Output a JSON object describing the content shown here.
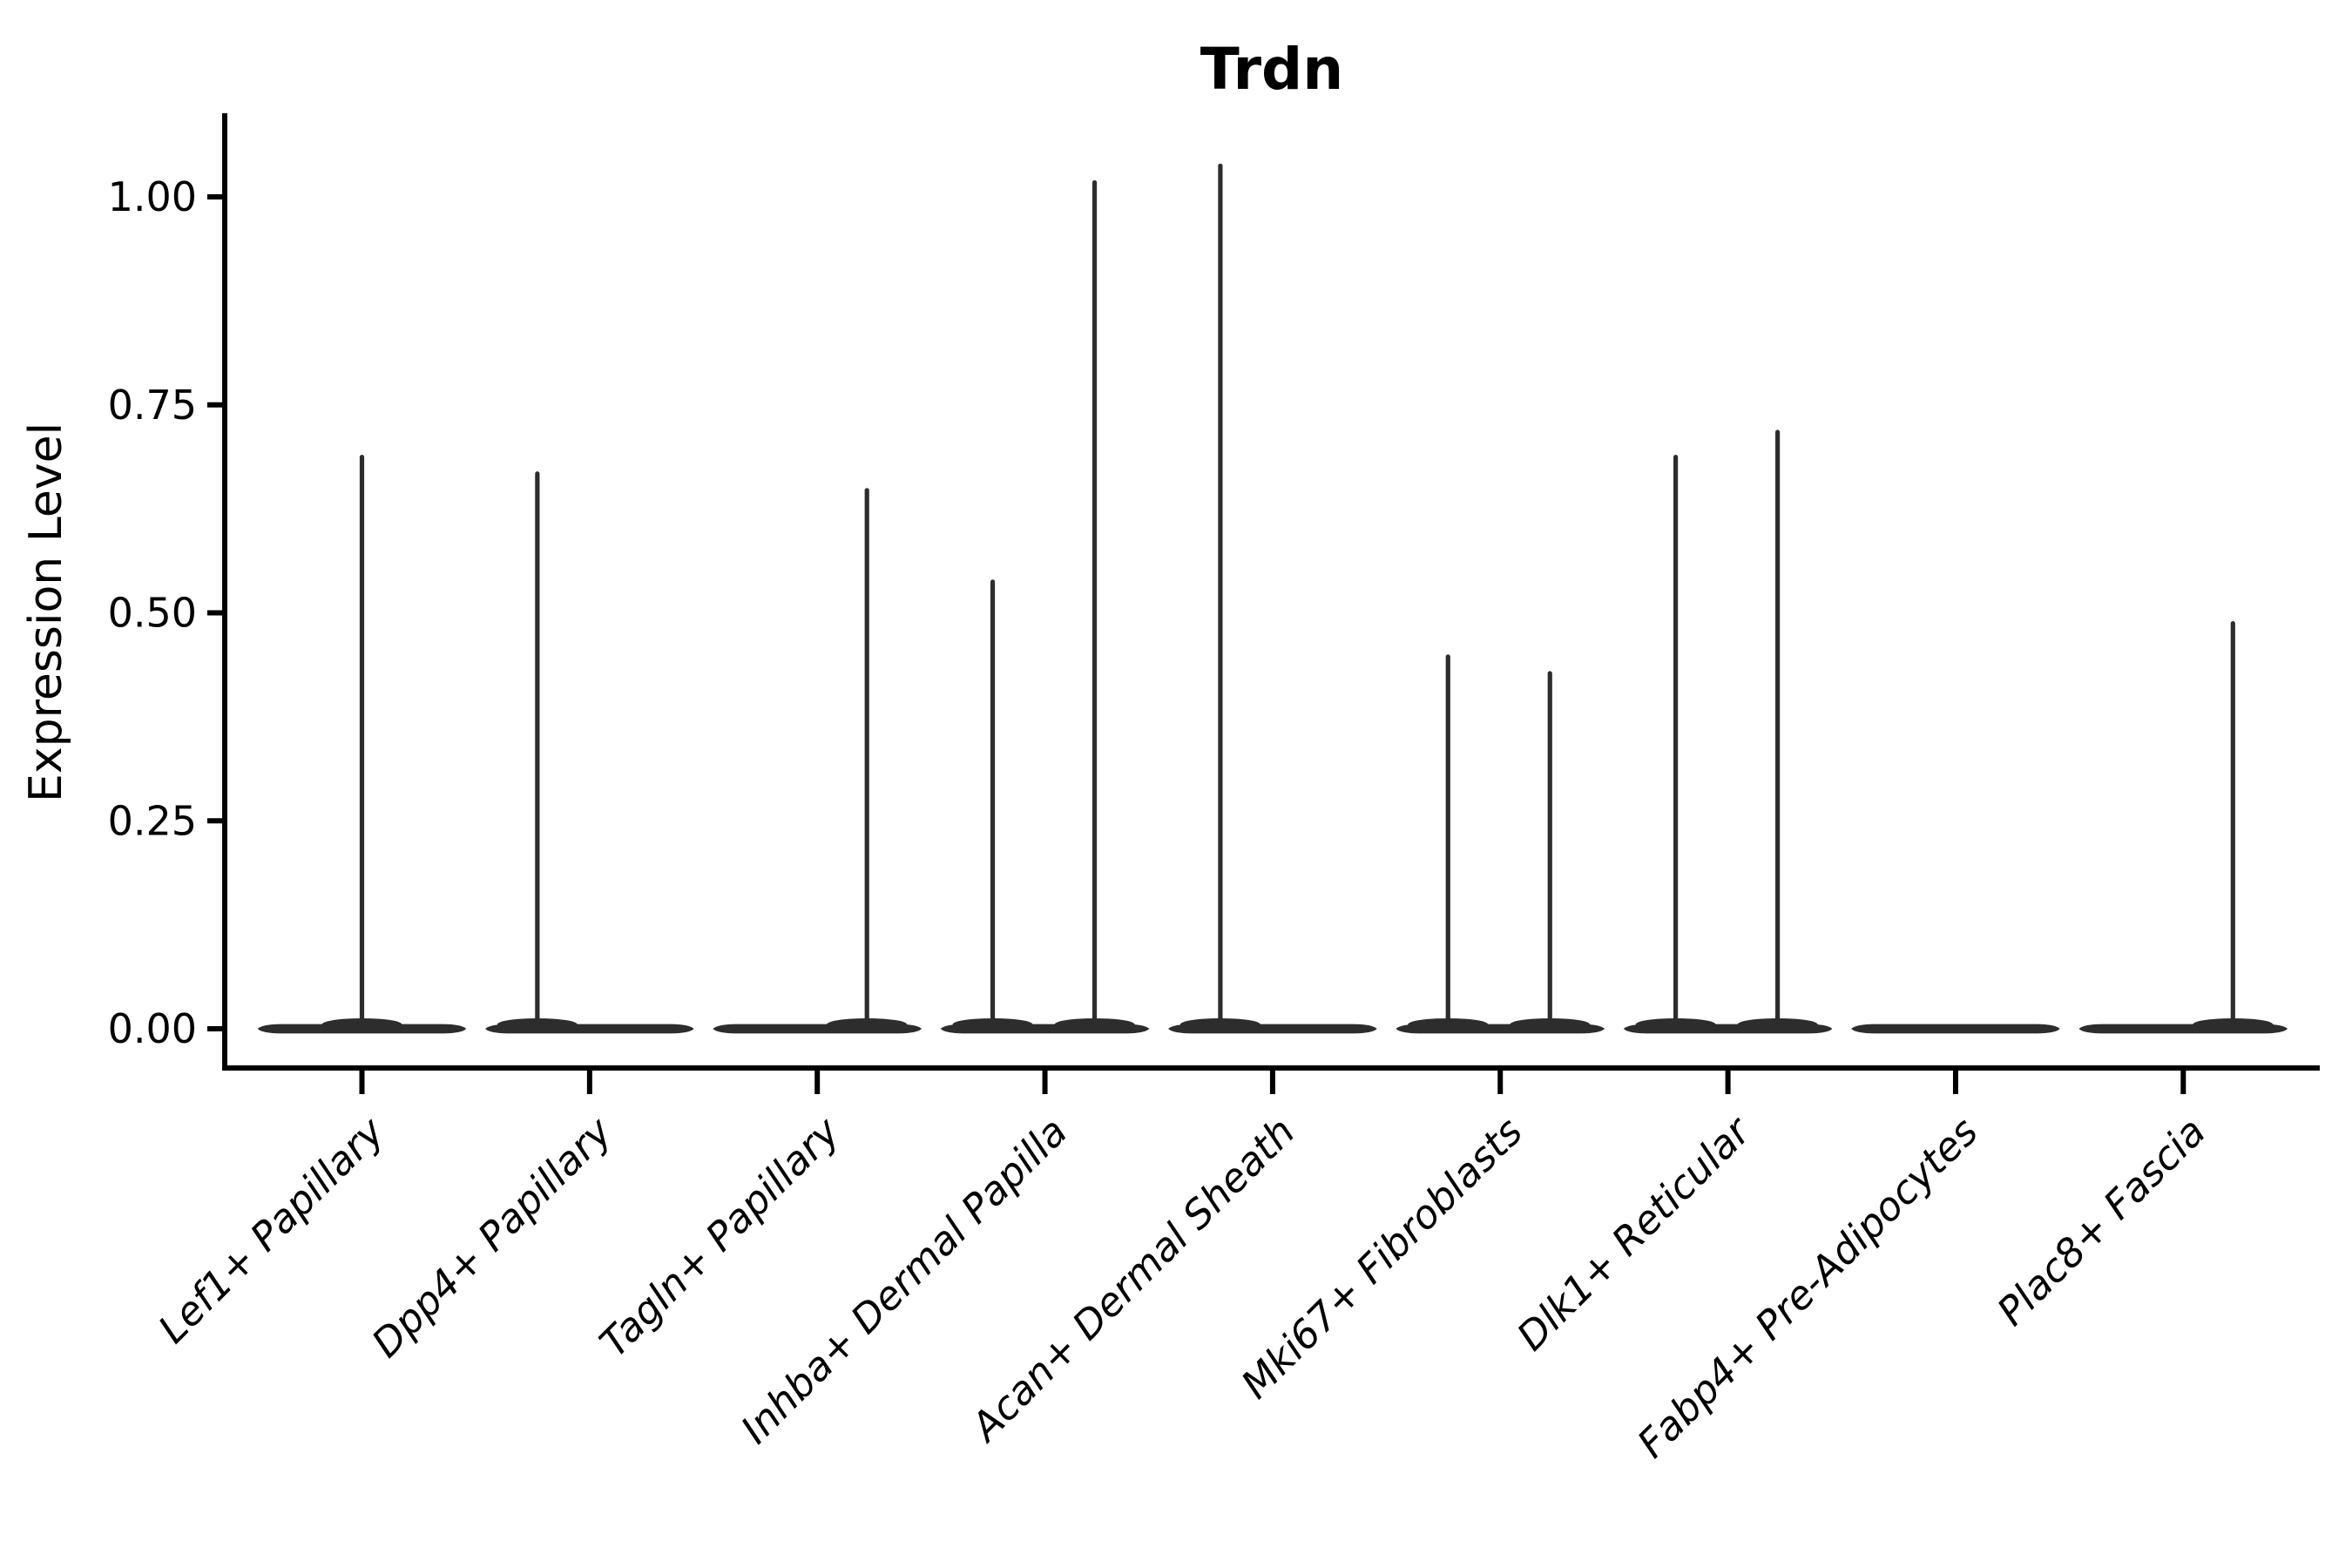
{
  "chart_data": {
    "type": "violin",
    "title": "Trdn",
    "ylabel": "Expression Level",
    "xlabel": "",
    "ylim": [
      0,
      1.04
    ],
    "grid": false,
    "legend": null,
    "yticks": [
      {
        "value": 0.0,
        "label": "0.00"
      },
      {
        "value": 0.25,
        "label": "0.25"
      },
      {
        "value": 0.5,
        "label": "0.50"
      },
      {
        "value": 0.75,
        "label": "0.75"
      },
      {
        "value": 1.0,
        "label": "1.00"
      }
    ],
    "categories": [
      "Lef1+ Papillary",
      "Dpp4+ Papillary",
      "Tagln+ Papillary",
      "Inhba+ Dermal Papilla",
      "Acan+ Dermal Sheath",
      "Mki67+ Fibroblasts",
      "Dlk1+ Reticular",
      "Fabp4+ Pre-Adipocytes",
      "Plac8+ Fascia"
    ],
    "violins": [
      {
        "category": "Lef1+ Papillary",
        "baseline_value": 0,
        "spikes": [
          {
            "side": "center",
            "max": 0.69
          }
        ]
      },
      {
        "category": "Dpp4+ Papillary",
        "baseline_value": 0,
        "spikes": [
          {
            "side": "left",
            "max": 0.67
          }
        ]
      },
      {
        "category": "Tagln+ Papillary",
        "baseline_value": 0,
        "spikes": [
          {
            "side": "right",
            "max": 0.65
          }
        ]
      },
      {
        "category": "Inhba+ Dermal Papilla",
        "baseline_value": 0,
        "spikes": [
          {
            "side": "left",
            "max": 0.54
          },
          {
            "side": "right",
            "max": 1.02
          }
        ]
      },
      {
        "category": "Acan+ Dermal Sheath",
        "baseline_value": 0,
        "spikes": [
          {
            "side": "left",
            "max": 1.04
          }
        ]
      },
      {
        "category": "Mki67+ Fibroblasts",
        "baseline_value": 0,
        "spikes": [
          {
            "side": "left",
            "max": 0.45
          },
          {
            "side": "right",
            "max": 0.43
          }
        ]
      },
      {
        "category": "Dlk1+ Reticular",
        "baseline_value": 0,
        "spikes": [
          {
            "side": "left",
            "max": 0.69
          },
          {
            "side": "right",
            "max": 0.72
          }
        ]
      },
      {
        "category": "Fabp4+ Pre-Adipocytes",
        "baseline_value": 0,
        "spikes": []
      },
      {
        "category": "Plac8+ Fascia",
        "baseline_value": 0,
        "spikes": [
          {
            "side": "right",
            "max": 0.49
          }
        ]
      }
    ],
    "colors": {
      "violin": "#2d2d2d",
      "axis": "#000000",
      "text": "#000000",
      "background": "#ffffff"
    }
  }
}
